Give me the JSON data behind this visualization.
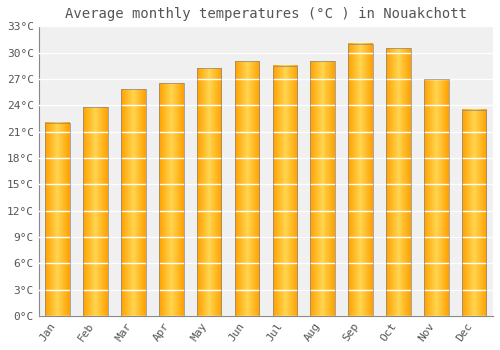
{
  "title": "Average monthly temperatures (°C ) in Nouakchott",
  "months": [
    "Jan",
    "Feb",
    "Mar",
    "Apr",
    "May",
    "Jun",
    "Jul",
    "Aug",
    "Sep",
    "Oct",
    "Nov",
    "Dec"
  ],
  "values": [
    22.0,
    23.8,
    25.8,
    26.5,
    28.2,
    29.0,
    28.5,
    29.0,
    31.0,
    30.5,
    27.0,
    23.5
  ],
  "bar_color_center": "#FFD54F",
  "bar_color_edge": "#FFA000",
  "bar_border_color": "#888888",
  "background_color": "#FFFFFF",
  "plot_bg_color": "#F0F0F0",
  "grid_color": "#FFFFFF",
  "text_color": "#555555",
  "ylim": [
    0,
    33
  ],
  "yticks": [
    0,
    3,
    6,
    9,
    12,
    15,
    18,
    21,
    24,
    27,
    30,
    33
  ],
  "ytick_labels": [
    "0°C",
    "3°C",
    "6°C",
    "9°C",
    "12°C",
    "15°C",
    "18°C",
    "21°C",
    "24°C",
    "27°C",
    "30°C",
    "33°C"
  ],
  "title_fontsize": 10,
  "tick_fontsize": 8,
  "font_family": "monospace",
  "bar_width": 0.65
}
